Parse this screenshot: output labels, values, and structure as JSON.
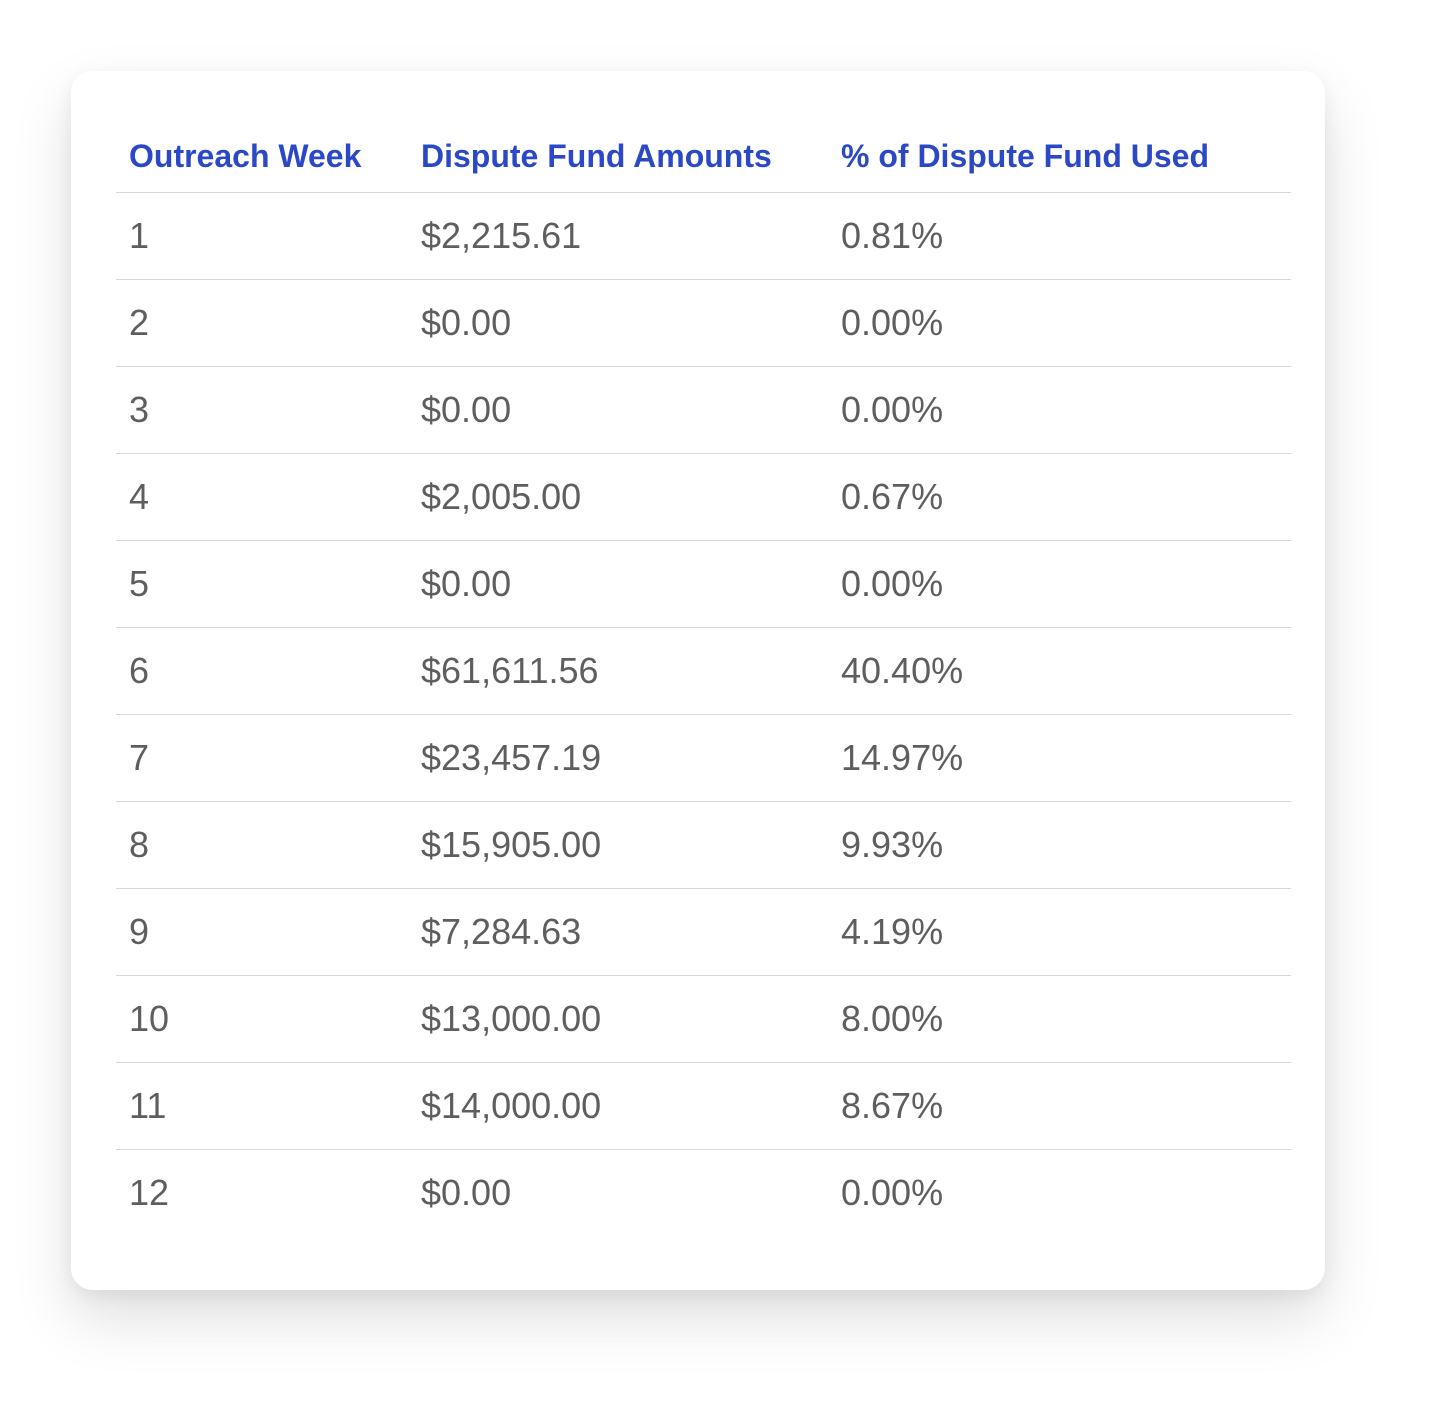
{
  "table": {
    "headers": [
      "Outreach Week",
      "Dispute Fund Amounts",
      "% of Dispute Fund Used"
    ],
    "rows": [
      [
        "1",
        "$2,215.61",
        "0.81%"
      ],
      [
        "2",
        "$0.00",
        "0.00%"
      ],
      [
        "3",
        "$0.00",
        "0.00%"
      ],
      [
        "4",
        "$2,005.00",
        "0.67%"
      ],
      [
        "5",
        "$0.00",
        "0.00%"
      ],
      [
        "6",
        "$61,611.56",
        "40.40%"
      ],
      [
        "7",
        "$23,457.19",
        "14.97%"
      ],
      [
        "8",
        "$15,905.00",
        "9.93%"
      ],
      [
        "9",
        "$7,284.63",
        "4.19%"
      ],
      [
        "10",
        "$13,000.00",
        "8.00%"
      ],
      [
        "11",
        "$14,000.00",
        "8.67%"
      ],
      [
        "12",
        "$0.00",
        "0.00%"
      ]
    ]
  },
  "colors": {
    "header_text": "#2b48c6",
    "body_text": "#5e5e5e",
    "divider": "#d6d6d6",
    "card_background": "#ffffff"
  }
}
